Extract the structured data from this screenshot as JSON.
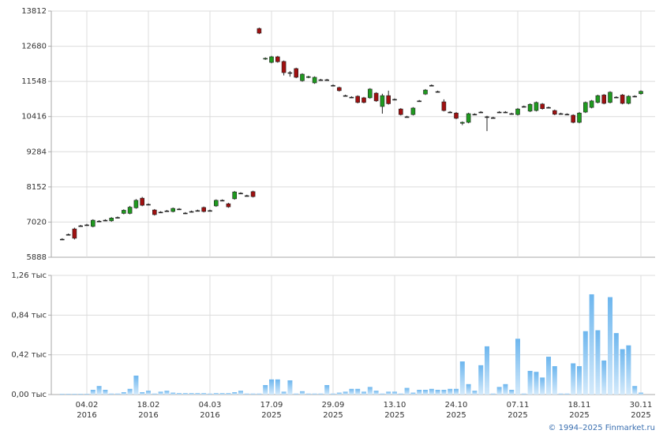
{
  "chart_data": [
    {
      "type": "candlestick",
      "categories": [
        null,
        null,
        null,
        null,
        {
          "date": "04.02",
          "year": "2016"
        },
        null,
        null,
        null,
        null,
        null,
        null,
        null,
        null,
        null,
        {
          "date": "18.02",
          "year": "2016"
        },
        null,
        null,
        null,
        null,
        null,
        null,
        null,
        null,
        null,
        {
          "date": "04.03",
          "year": "2016"
        },
        null,
        null,
        null,
        null,
        null,
        null,
        null,
        null,
        null,
        {
          "date": "17.09",
          "year": "2025"
        },
        null,
        null,
        null,
        null,
        null,
        null,
        null,
        null,
        null,
        {
          "date": "29.09",
          "year": "2025"
        },
        null,
        null,
        null,
        null,
        null,
        null,
        null,
        null,
        null,
        {
          "date": "13.10",
          "year": "2025"
        },
        null,
        null,
        null,
        null,
        null,
        null,
        null,
        null,
        null,
        {
          "date": "24.10",
          "year": "2025"
        },
        null,
        null,
        null,
        null,
        null,
        null,
        null,
        null,
        null,
        {
          "date": "07.11",
          "year": "2025"
        },
        null,
        null,
        null,
        null,
        null,
        null,
        null,
        null,
        null,
        {
          "date": "18.11",
          "year": "2025"
        },
        null,
        null,
        null,
        null,
        null,
        null,
        null,
        null,
        null,
        {
          "date": "30.11",
          "year": "2025"
        }
      ],
      "open": [
        6470,
        6620,
        6800,
        6900,
        6930,
        6880,
        7050,
        7080,
        7060,
        7170,
        7300,
        7300,
        7480,
        7790,
        7590,
        7410,
        7340,
        7380,
        7360,
        7440,
        7310,
        7360,
        7390,
        7490,
        7390,
        7540,
        7720,
        7610,
        7770,
        7950,
        7870,
        8000,
        13250,
        12270,
        12160,
        12340,
        12190,
        11830,
        11960,
        11570,
        11680,
        11500,
        11600,
        11600,
        11420,
        11350,
        11090,
        11040,
        11070,
        11020,
        11020,
        11170,
        10740,
        11090,
        10970,
        10660,
        10410,
        10480,
        10920,
        11140,
        11420,
        11220,
        10890,
        10560,
        10530,
        10200,
        10230,
        10490,
        10560,
        10410,
        10380,
        10560,
        10560,
        10510,
        10480,
        10740,
        10590,
        10610,
        10820,
        10710,
        10610,
        10510,
        10490,
        10460,
        10230,
        10560,
        10710,
        10870,
        11110,
        10870,
        11040,
        11110,
        10840,
        11070,
        11150
      ],
      "high": [
        6500,
        6650,
        6840,
        6930,
        6960,
        7110,
        7080,
        7110,
        7180,
        7200,
        7430,
        7540,
        7760,
        7830,
        7620,
        7440,
        7370,
        7410,
        7490,
        7470,
        7340,
        7390,
        7420,
        7520,
        7420,
        7750,
        7750,
        7640,
        8020,
        7980,
        7900,
        8030,
        13280,
        12320,
        12370,
        12370,
        12220,
        11880,
        11990,
        11810,
        11730,
        11710,
        11630,
        11630,
        11450,
        11380,
        11120,
        11070,
        11100,
        11050,
        11330,
        11200,
        11150,
        11250,
        11000,
        10690,
        10440,
        10720,
        10950,
        11300,
        11450,
        11250,
        10970,
        10590,
        10560,
        10260,
        10540,
        10520,
        10590,
        10440,
        10410,
        10590,
        10590,
        10540,
        10690,
        10770,
        10840,
        10900,
        10850,
        10740,
        10640,
        10540,
        10520,
        10490,
        10560,
        10900,
        10950,
        11120,
        11140,
        11230,
        11070,
        11140,
        11100,
        11100,
        11260
      ],
      "low": [
        6440,
        6590,
        6460,
        6870,
        6900,
        6850,
        7020,
        7050,
        7030,
        7140,
        7270,
        7270,
        7450,
        7530,
        7560,
        7230,
        7310,
        7350,
        7330,
        7410,
        7280,
        7330,
        7360,
        7330,
        7360,
        7510,
        7690,
        7480,
        7740,
        7920,
        7840,
        7810,
        13070,
        12240,
        12130,
        12150,
        11740,
        11700,
        11650,
        11540,
        11650,
        11470,
        11570,
        11570,
        11390,
        11220,
        11060,
        11010,
        10840,
        10840,
        10990,
        10890,
        10510,
        10800,
        10940,
        10450,
        10380,
        10450,
        10890,
        11110,
        11390,
        11190,
        10580,
        10530,
        10330,
        10140,
        10200,
        10460,
        10530,
        9950,
        10350,
        10530,
        10530,
        10480,
        10450,
        10710,
        10560,
        10580,
        10640,
        10680,
        10460,
        10480,
        10460,
        10200,
        10200,
        10530,
        10680,
        10840,
        10810,
        10840,
        11010,
        10810,
        10810,
        11040,
        11120
      ],
      "close": [
        6470,
        6620,
        6500,
        6900,
        6930,
        7080,
        7050,
        7080,
        7150,
        7170,
        7400,
        7500,
        7720,
        7560,
        7590,
        7260,
        7340,
        7380,
        7460,
        7440,
        7310,
        7360,
        7390,
        7360,
        7390,
        7720,
        7720,
        7510,
        7990,
        7950,
        7870,
        7840,
        13100,
        12290,
        12340,
        12180,
        11830,
        11830,
        11680,
        11780,
        11700,
        11680,
        11600,
        11600,
        11420,
        11250,
        11090,
        11040,
        10870,
        10870,
        11300,
        10920,
        11090,
        10830,
        10970,
        10480,
        10410,
        10690,
        10920,
        11270,
        11420,
        11220,
        10610,
        10560,
        10360,
        10230,
        10510,
        10490,
        10560,
        10410,
        10380,
        10560,
        10560,
        10510,
        10660,
        10740,
        10810,
        10870,
        10670,
        10710,
        10490,
        10510,
        10490,
        10230,
        10530,
        10870,
        10920,
        11090,
        10840,
        11200,
        11040,
        10840,
        11070,
        11070,
        11230
      ],
      "ylim": [
        5888,
        13812
      ],
      "yticks": [
        5888,
        7020,
        8152,
        9284,
        10416,
        11548,
        12680,
        13812
      ],
      "up_color": "#1f9a1f",
      "down_color": "#a01010",
      "grid": true
    },
    {
      "type": "bar",
      "values": [
        8,
        8,
        8,
        8,
        8,
        50,
        90,
        50,
        10,
        10,
        25,
        60,
        200,
        25,
        40,
        10,
        30,
        40,
        20,
        15,
        15,
        15,
        15,
        15,
        10,
        15,
        15,
        15,
        25,
        40,
        10,
        10,
        10,
        100,
        160,
        160,
        30,
        150,
        10,
        35,
        10,
        10,
        10,
        100,
        10,
        20,
        30,
        60,
        60,
        30,
        80,
        40,
        10,
        30,
        30,
        10,
        70,
        20,
        50,
        50,
        60,
        50,
        50,
        60,
        60,
        350,
        110,
        40,
        310,
        510,
        10,
        80,
        110,
        50,
        590,
        10,
        250,
        240,
        180,
        400,
        300,
        10,
        10,
        330,
        300,
        670,
        1060,
        680,
        360,
        1030,
        650,
        480,
        520,
        90,
        20
      ],
      "ylim": [
        0,
        1260
      ],
      "yticks": [
        {
          "value": 0,
          "label": "0,00 тыс"
        },
        {
          "value": 420,
          "label": "0,42 тыс"
        },
        {
          "value": 840,
          "label": "0,84 тыс"
        },
        {
          "value": 1260,
          "label": "1,26 тыс"
        }
      ],
      "color": "#7fc0f0",
      "grid": true
    }
  ],
  "footer": "© 1994–2025 Finmarket.ru"
}
